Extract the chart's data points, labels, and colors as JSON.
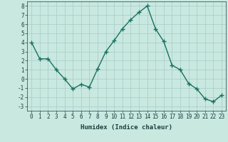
{
  "x": [
    0,
    1,
    2,
    3,
    4,
    5,
    6,
    7,
    8,
    9,
    10,
    11,
    12,
    13,
    14,
    15,
    16,
    17,
    18,
    19,
    20,
    21,
    22,
    23
  ],
  "y": [
    4.0,
    2.2,
    2.2,
    1.0,
    0.0,
    -1.1,
    -0.6,
    -0.9,
    1.1,
    3.0,
    4.2,
    5.5,
    6.5,
    7.3,
    8.0,
    5.5,
    4.1,
    1.5,
    1.0,
    -0.5,
    -1.1,
    -2.2,
    -2.5,
    -1.8
  ],
  "xlabel": "Humidex (Indice chaleur)",
  "xlim": [
    -0.5,
    23.5
  ],
  "ylim": [
    -3.5,
    8.5
  ],
  "yticks": [
    -3,
    -2,
    -1,
    0,
    1,
    2,
    3,
    4,
    5,
    6,
    7,
    8
  ],
  "xticks": [
    0,
    1,
    2,
    3,
    4,
    5,
    6,
    7,
    8,
    9,
    10,
    11,
    12,
    13,
    14,
    15,
    16,
    17,
    18,
    19,
    20,
    21,
    22,
    23
  ],
  "line_color": "#1a7060",
  "marker_color": "#1a7060",
  "bg_color": "#c8e8e0",
  "grid_color": "#a8ccc8",
  "font_color": "#1a4040",
  "tick_fontsize": 5.5,
  "xlabel_fontsize": 6.5
}
